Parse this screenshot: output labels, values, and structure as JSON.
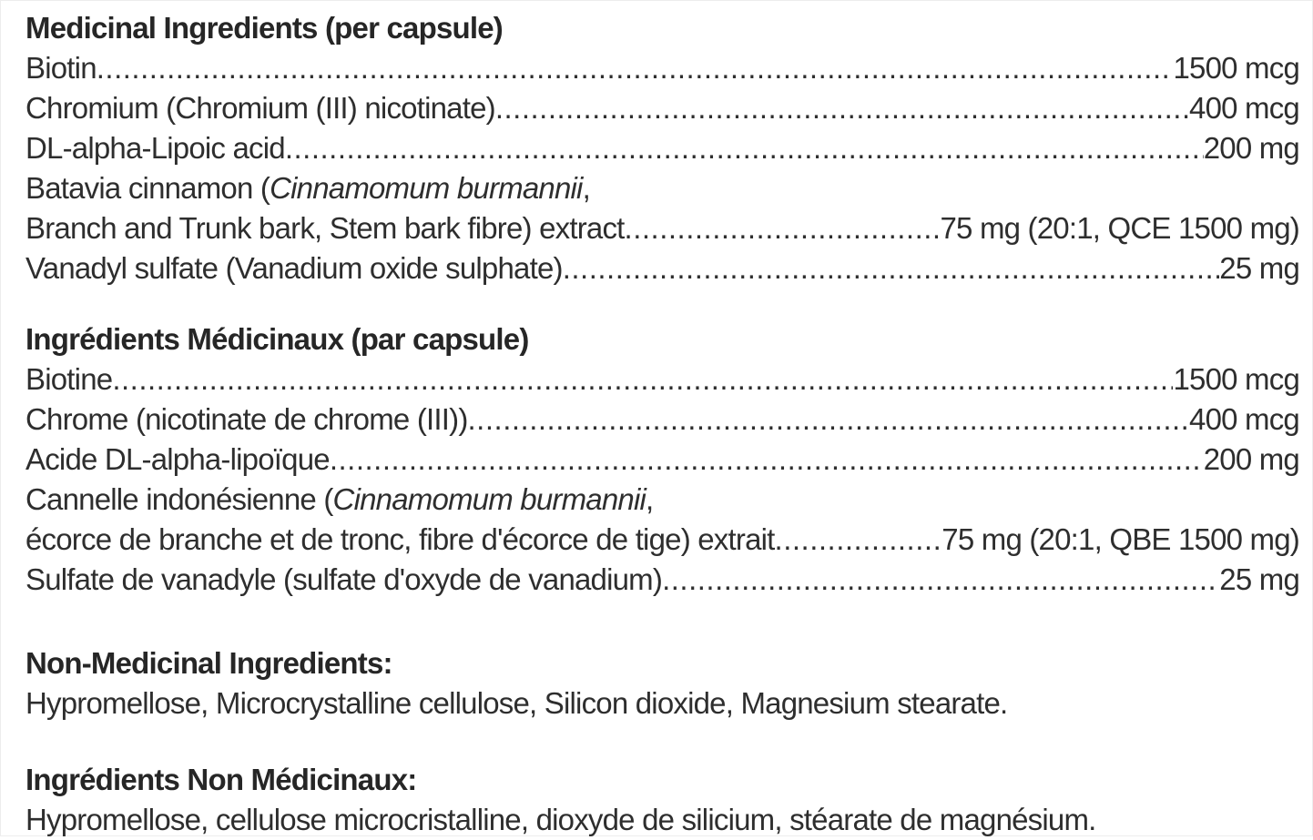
{
  "colors": {
    "text": "#2e2e2e",
    "heading": "#262626",
    "background": "#ffffff"
  },
  "medicinal_en": {
    "heading": "Medicinal Ingredients (per capsule)",
    "rows": [
      {
        "name": "Biotin",
        "value": "1500 mcg"
      },
      {
        "name": "Chromium (Chromium (III) nicotinate) ",
        "value": "400 mcg"
      },
      {
        "name": "DL-alpha-Lipoic acid ",
        "value": "200 mg"
      },
      {
        "pre": "Batavia cinnamon (",
        "latin": "Cinnamomum burmannii",
        "post": ","
      },
      {
        "name": "Branch and Trunk bark, Stem bark fibre) extract",
        "value": "75 mg (20:1, QCE 1500 mg)"
      },
      {
        "name": "Vanadyl sulfate (Vanadium oxide sulphate) ",
        "value": "25 mg"
      }
    ]
  },
  "medicinal_fr": {
    "heading": "Ingrédients Médicinaux (par capsule)",
    "rows": [
      {
        "name": "Biotine ",
        "value": "1500 mcg"
      },
      {
        "name": "Chrome (nicotinate de chrome (III)) ",
        "value": "400 mcg"
      },
      {
        "name": "Acide DL-alpha-lipoïque",
        "value": "200 mg"
      },
      {
        "pre": "Cannelle indonésienne (",
        "latin": "Cinnamomum burmannii",
        "post": ","
      },
      {
        "name": "écorce de branche et de tronc, fibre d'écorce de tige) extrait ",
        "value": "75 mg (20:1, QBE 1500 mg)"
      },
      {
        "name": "Sulfate de vanadyle (sulfate d'oxyde de vanadium)",
        "value": "25 mg"
      }
    ]
  },
  "non_medicinal_en": {
    "heading": "Non-Medicinal Ingredients:",
    "body": "Hypromellose, Microcrystalline cellulose, Silicon dioxide, Magnesium stearate."
  },
  "non_medicinal_fr": {
    "heading": "Ingrédients Non Médicinaux:",
    "body": "Hypromellose, cellulose microcristalline, dioxyde de silicium, stéarate de magnésium."
  }
}
